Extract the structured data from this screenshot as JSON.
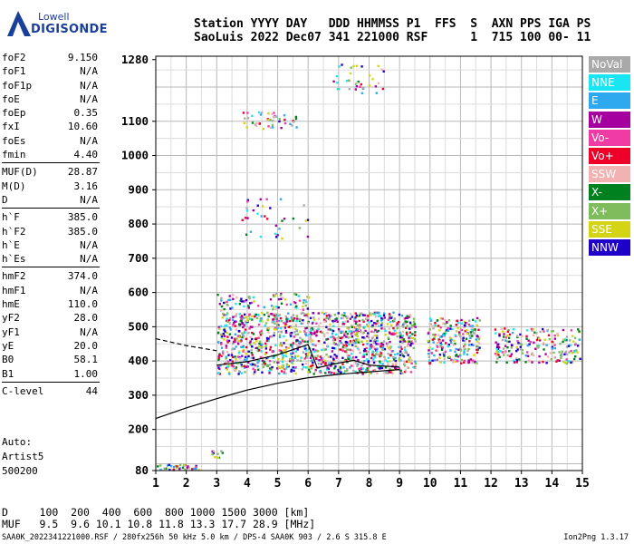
{
  "logo": {
    "line1": "Lowell",
    "line2": "DIGISONDE"
  },
  "header": {
    "line1": "Station YYYY DAY   DDD HHMMSS P1  FFS  S  AXN PPS IGA PS",
    "line2": "SaoLuis 2022 Dec07 341 221000 RSF      1  715 100 00- 11"
  },
  "params": [
    [
      {
        "k": "foF2",
        "v": "9.150"
      },
      {
        "k": "foF1",
        "v": "N/A"
      },
      {
        "k": "foF1p",
        "v": "N/A"
      },
      {
        "k": "foE",
        "v": "N/A"
      },
      {
        "k": "foEp",
        "v": "0.35"
      },
      {
        "k": "fxI",
        "v": "10.60"
      },
      {
        "k": "foEs",
        "v": "N/A"
      },
      {
        "k": "fmin",
        "v": "4.40"
      }
    ],
    [
      {
        "k": "MUF(D)",
        "v": "28.87"
      },
      {
        "k": "M(D)",
        "v": "3.16"
      },
      {
        "k": "D",
        "v": "N/A"
      }
    ],
    [
      {
        "k": "h`F",
        "v": "385.0"
      },
      {
        "k": "h`F2",
        "v": "385.0"
      },
      {
        "k": "h`E",
        "v": "N/A"
      },
      {
        "k": "h`Es",
        "v": "N/A"
      }
    ],
    [
      {
        "k": "hmF2",
        "v": "374.0"
      },
      {
        "k": "hmF1",
        "v": "N/A"
      },
      {
        "k": "hmE",
        "v": "110.0"
      },
      {
        "k": "yF2",
        "v": "28.0"
      },
      {
        "k": "yF1",
        "v": "N/A"
      },
      {
        "k": "yE",
        "v": "20.0"
      },
      {
        "k": "B0",
        "v": "58.1"
      },
      {
        "k": "B1",
        "v": "1.00"
      }
    ],
    [
      {
        "k": "C-level",
        "v": "44"
      }
    ]
  ],
  "auto": {
    "line1": "Auto:",
    "line2": "Artist5",
    "line3": "500200"
  },
  "legend": [
    {
      "label": "NoVal",
      "color": "#a9a9a9"
    },
    {
      "label": "NNE",
      "color": "#19e6f2"
    },
    {
      "label": "E",
      "color": "#2ea8ee"
    },
    {
      "label": "W",
      "color": "#a5009f"
    },
    {
      "label": "Vo-",
      "color": "#ef3ba3"
    },
    {
      "label": "Vo+",
      "color": "#ee0028"
    },
    {
      "label": "SSW",
      "color": "#f3b2b2"
    },
    {
      "label": "X-",
      "color": "#00801f"
    },
    {
      "label": "X+",
      "color": "#7fbc5c"
    },
    {
      "label": "SSE",
      "color": "#d4d414"
    },
    {
      "label": "NNW",
      "color": "#1f00c8"
    }
  ],
  "dmuf": {
    "line1": "D     100  200  400  600  800 1000 1500 3000 [km]",
    "line2": "MUF   9.5  9.6 10.1 10.8 11.8 13.3 17.7 28.9 [MHz]"
  },
  "footer": {
    "left": "SAA0K_2022341221000.RSF / 280fx256h 50 kHz 5.0 km / DPS-4 SAA0K 903 / 2.6 S 315.8 E",
    "right": "Ion2Png 1.3.17"
  },
  "chart_data": {
    "type": "scatter",
    "title": "",
    "xlabel": "",
    "ylabel": "",
    "xlim": [
      1,
      15
    ],
    "ylim": [
      80,
      1290
    ],
    "xticks": [
      1,
      2,
      3,
      4,
      5,
      6,
      7,
      8,
      9,
      10,
      11,
      12,
      13,
      14,
      15
    ],
    "yticks": [
      80,
      200,
      300,
      400,
      500,
      600,
      700,
      800,
      900,
      1000,
      1100,
      1280
    ],
    "grid": true,
    "legend_position": "right",
    "profile_curves": [
      {
        "name": "",
        "style": "solid",
        "points": [
          [
            1.0,
            232
          ],
          [
            2.0,
            263
          ],
          [
            3.0,
            290
          ],
          [
            4.0,
            315
          ],
          [
            5.0,
            335
          ],
          [
            6.0,
            351
          ],
          [
            7.0,
            361
          ],
          [
            8.0,
            368
          ],
          [
            9.0,
            375
          ]
        ]
      },
      {
        "name": "",
        "style": "solid",
        "points": [
          [
            3.0,
            388
          ],
          [
            4.0,
            398
          ],
          [
            5.0,
            418
          ],
          [
            6.0,
            448
          ],
          [
            6.3,
            380
          ],
          [
            7.0,
            394
          ],
          [
            7.5,
            402
          ],
          [
            8.0,
            388
          ],
          [
            9.0,
            382
          ]
        ]
      },
      {
        "name": "",
        "style": "dashed",
        "points": [
          [
            1.0,
            465
          ],
          [
            2.0,
            445
          ],
          [
            3.0,
            430
          ]
        ]
      }
    ],
    "echo_regions": [
      {
        "fmin": 3.0,
        "fmax": 9.5,
        "hmin": 365,
        "hmax": 545,
        "count": 1300
      },
      {
        "fmin": 9.9,
        "fmax": 11.6,
        "hmin": 395,
        "hmax": 530,
        "count": 230
      },
      {
        "fmin": 12.1,
        "fmax": 14.9,
        "hmin": 395,
        "hmax": 500,
        "count": 200
      },
      {
        "fmin": 3.0,
        "fmax": 6.0,
        "hmin": 550,
        "hmax": 600,
        "count": 80
      },
      {
        "fmin": 3.8,
        "fmax": 6.0,
        "hmin": 760,
        "hmax": 880,
        "count": 35
      },
      {
        "fmin": 3.8,
        "fmax": 5.6,
        "hmin": 1080,
        "hmax": 1130,
        "count": 45
      },
      {
        "fmin": 6.8,
        "fmax": 8.5,
        "hmin": 1180,
        "hmax": 1270,
        "count": 35
      },
      {
        "fmin": 1.0,
        "fmax": 2.4,
        "hmin": 82,
        "hmax": 100,
        "count": 35
      },
      {
        "fmin": 2.8,
        "fmax": 3.2,
        "hmin": 120,
        "hmax": 140,
        "count": 10
      }
    ]
  }
}
